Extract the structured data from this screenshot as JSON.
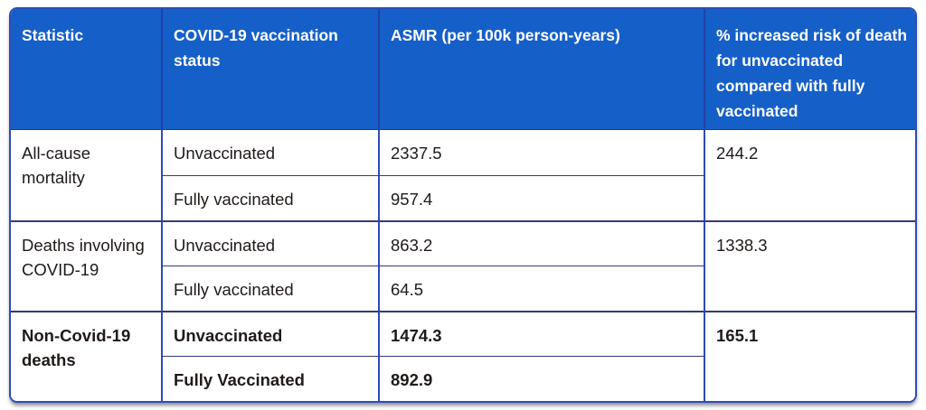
{
  "table": {
    "columns": [
      {
        "label": "Statistic"
      },
      {
        "label": "COVID-19 vaccination status"
      },
      {
        "label": "ASMR (per 100k person-years)"
      },
      {
        "label": "% increased risk of death for unvaccinated compared with fully vaccinated"
      }
    ],
    "groups": [
      {
        "statistic": "All-cause mortality",
        "risk": "244.2",
        "bold": false,
        "rows": [
          {
            "status": "Unvaccinated",
            "asmr": "2337.5"
          },
          {
            "status": "Fully vaccinated",
            "asmr": "957.4"
          }
        ]
      },
      {
        "statistic": "Deaths involving COVID-19",
        "risk": "1338.3",
        "bold": false,
        "rows": [
          {
            "status": "Unvaccinated",
            "asmr": "863.2"
          },
          {
            "status": "Fully vaccinated",
            "asmr": "64.5"
          }
        ]
      },
      {
        "statistic": "Non-Covid-19 deaths",
        "risk": "165.1",
        "bold": true,
        "rows": [
          {
            "status": "Unvaccinated",
            "asmr": "1474.3"
          },
          {
            "status": "Fully Vaccinated",
            "asmr": "892.9"
          }
        ]
      }
    ]
  },
  "colors": {
    "header_bg": "#155fc8",
    "header_text": "#ffffff",
    "border_blue": "#2c4bbd",
    "header_sep": "#2340a6",
    "divider": "#343a78",
    "text": "#1f1a18"
  },
  "chart_data": {
    "type": "table",
    "title": "",
    "columns": [
      "Statistic",
      "COVID-19 vaccination status",
      "ASMR (per 100k person-years)",
      "% increased risk of death for unvaccinated compared with fully vaccinated"
    ],
    "rows": [
      [
        "All-cause mortality",
        "Unvaccinated",
        2337.5,
        244.2
      ],
      [
        "All-cause mortality",
        "Fully vaccinated",
        957.4,
        244.2
      ],
      [
        "Deaths involving COVID-19",
        "Unvaccinated",
        863.2,
        1338.3
      ],
      [
        "Deaths involving COVID-19",
        "Fully vaccinated",
        64.5,
        1338.3
      ],
      [
        "Non-Covid-19 deaths",
        "Unvaccinated",
        1474.3,
        165.1
      ],
      [
        "Non-Covid-19 deaths",
        "Fully Vaccinated",
        892.9,
        165.1
      ]
    ]
  }
}
